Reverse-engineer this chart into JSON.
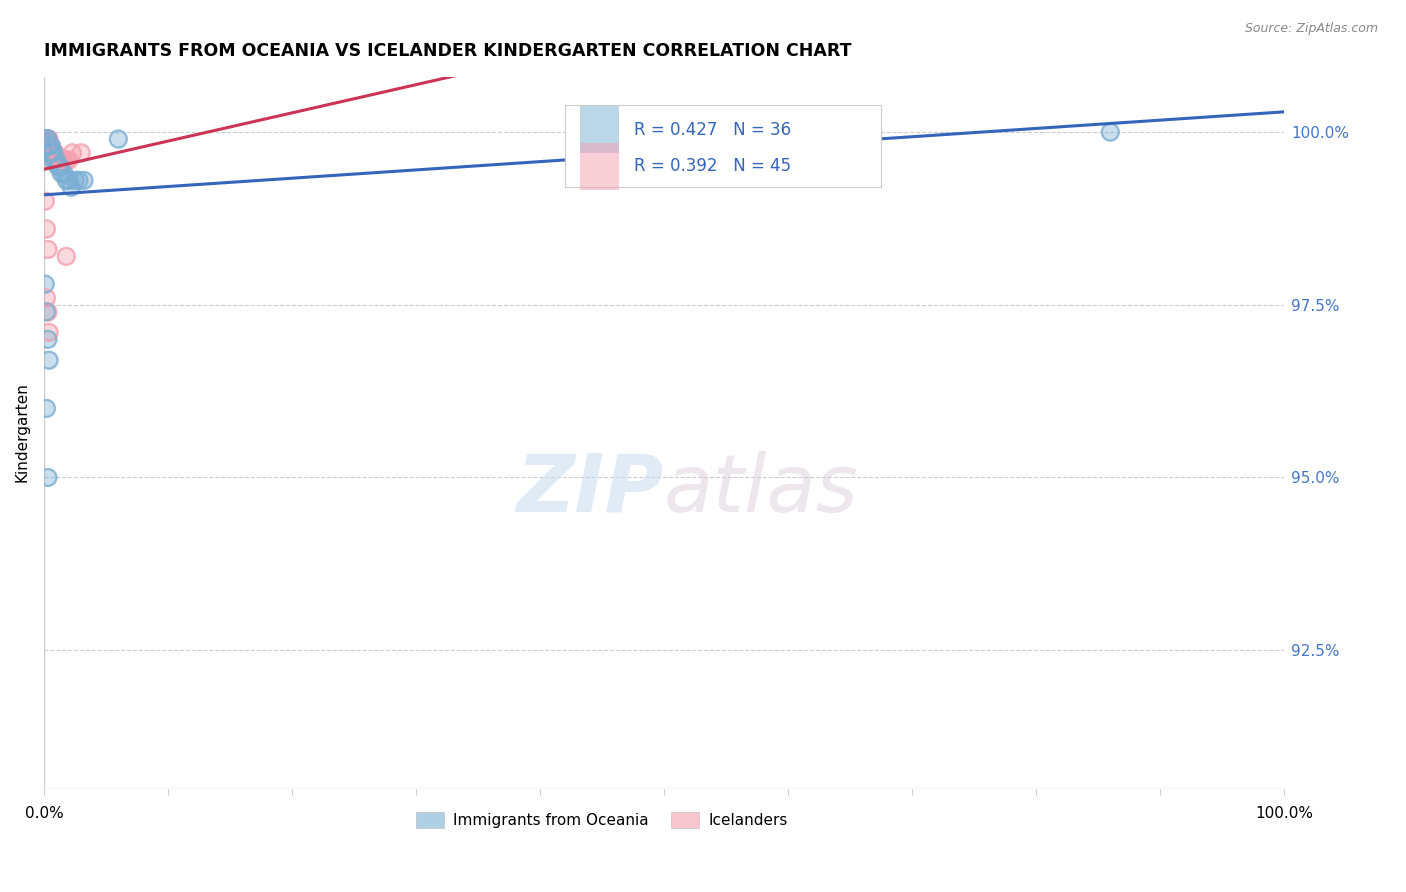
{
  "title": "IMMIGRANTS FROM OCEANIA VS ICELANDER KINDERGARTEN CORRELATION CHART",
  "source": "Source: ZipAtlas.com",
  "ylabel": "Kindergarten",
  "ytick_labels": [
    "100.0%",
    "97.5%",
    "95.0%",
    "92.5%"
  ],
  "ytick_values": [
    1.0,
    0.975,
    0.95,
    0.925
  ],
  "xlim": [
    0.0,
    1.0
  ],
  "ylim": [
    0.905,
    1.008
  ],
  "R_blue": 0.427,
  "N_blue": 36,
  "R_pink": 0.392,
  "N_pink": 45,
  "blue_color": "#7BAFD4",
  "pink_color": "#F4A0B0",
  "trendline_blue": "#3366BB",
  "trendline_pink": "#CC3355",
  "blue_x": [
    0.001,
    0.002,
    0.002,
    0.003,
    0.003,
    0.003,
    0.004,
    0.004,
    0.005,
    0.005,
    0.006,
    0.006,
    0.007,
    0.007,
    0.008,
    0.009,
    0.01,
    0.011,
    0.012,
    0.013,
    0.014,
    0.016,
    0.018,
    0.02,
    0.022,
    0.025,
    0.028,
    0.032,
    0.001,
    0.002,
    0.003,
    0.004,
    0.06,
    0.86,
    0.002,
    0.003
  ],
  "blue_y": [
    0.999,
    0.999,
    0.999,
    0.999,
    0.998,
    0.998,
    0.998,
    0.997,
    0.998,
    0.997,
    0.998,
    0.997,
    0.997,
    0.996,
    0.997,
    0.996,
    0.996,
    0.995,
    0.995,
    0.995,
    0.994,
    0.994,
    0.993,
    0.993,
    0.992,
    0.993,
    0.993,
    0.993,
    0.978,
    0.974,
    0.97,
    0.967,
    0.999,
    1.0,
    0.96,
    0.95
  ],
  "pink_x": [
    0.001,
    0.001,
    0.002,
    0.002,
    0.002,
    0.003,
    0.003,
    0.003,
    0.003,
    0.004,
    0.004,
    0.004,
    0.005,
    0.005,
    0.005,
    0.006,
    0.006,
    0.007,
    0.007,
    0.008,
    0.008,
    0.009,
    0.01,
    0.011,
    0.012,
    0.013,
    0.014,
    0.015,
    0.017,
    0.02,
    0.023,
    0.03,
    0.001,
    0.002,
    0.003,
    0.002,
    0.003,
    0.004,
    0.001,
    0.002,
    0.003,
    0.004,
    0.003,
    0.003,
    0.018
  ],
  "pink_y": [
    0.999,
    0.999,
    0.999,
    0.999,
    0.999,
    0.999,
    0.999,
    0.999,
    0.998,
    0.999,
    0.998,
    0.998,
    0.998,
    0.998,
    0.997,
    0.998,
    0.997,
    0.997,
    0.997,
    0.997,
    0.997,
    0.997,
    0.996,
    0.996,
    0.996,
    0.996,
    0.996,
    0.996,
    0.996,
    0.996,
    0.997,
    0.997,
    0.99,
    0.986,
    0.983,
    0.976,
    0.974,
    0.971,
    0.999,
    0.998,
    0.998,
    0.997,
    0.996,
    0.999,
    0.982
  ],
  "trendline_x_start": 0.0,
  "trendline_x_end": 1.0
}
